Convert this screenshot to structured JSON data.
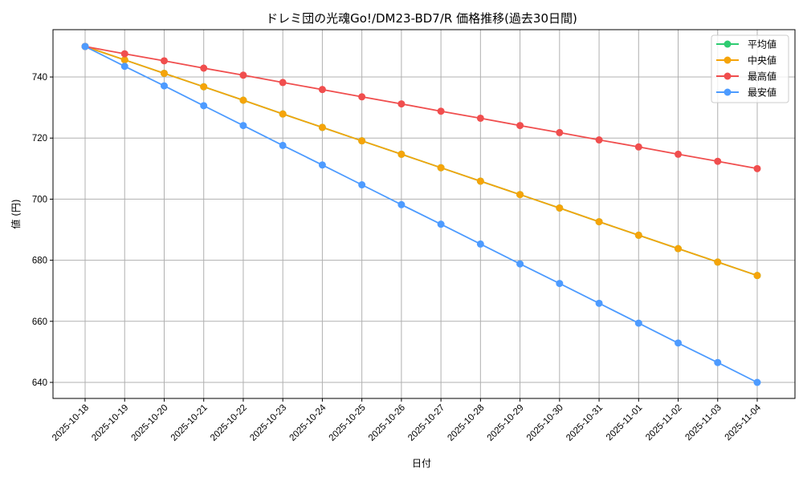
{
  "chart_data": {
    "type": "line",
    "title": "ドレミ団の光魂Go!/DM23-BD7/R 価格推移(過去30日間)",
    "xlabel": "日付",
    "ylabel": "値 (円)",
    "ylim": [
      634.75,
      755.5
    ],
    "yticks": [
      640,
      660,
      680,
      700,
      720,
      740
    ],
    "grid": true,
    "legend_position": "upper right",
    "x": [
      "2025-10-18",
      "2025-10-19",
      "2025-10-20",
      "2025-10-21",
      "2025-10-22",
      "2025-10-23",
      "2025-10-24",
      "2025-10-25",
      "2025-10-26",
      "2025-10-27",
      "2025-10-28",
      "2025-10-29",
      "2025-10-30",
      "2025-10-31",
      "2025-11-01",
      "2025-11-02",
      "2025-11-03",
      "2025-11-04"
    ],
    "series": [
      {
        "name": "平均値",
        "color": "#2ecc71",
        "values": [
          750.0,
          745.6,
          741.2,
          736.8,
          732.4,
          727.9,
          723.5,
          719.1,
          714.7,
          710.3,
          705.9,
          701.5,
          697.1,
          692.6,
          688.2,
          683.8,
          679.4,
          675.0
        ]
      },
      {
        "name": "中央値",
        "color": "#f5a40a",
        "values": [
          750.0,
          745.6,
          741.2,
          736.8,
          732.4,
          727.9,
          723.5,
          719.1,
          714.7,
          710.3,
          705.9,
          701.5,
          697.1,
          692.6,
          688.2,
          683.8,
          679.4,
          675.0
        ]
      },
      {
        "name": "最高値",
        "color": "#f04e4e",
        "values": [
          750.0,
          747.6,
          745.3,
          742.9,
          740.6,
          738.2,
          735.9,
          733.5,
          731.2,
          728.8,
          726.5,
          724.1,
          721.8,
          719.4,
          717.1,
          714.7,
          712.4,
          710.0
        ]
      },
      {
        "name": "最安値",
        "color": "#4d9bff",
        "values": [
          750.0,
          743.5,
          737.1,
          730.6,
          724.1,
          717.6,
          711.2,
          704.7,
          698.2,
          691.8,
          685.3,
          678.8,
          672.4,
          665.9,
          659.4,
          652.9,
          646.5,
          640.0
        ]
      }
    ]
  }
}
